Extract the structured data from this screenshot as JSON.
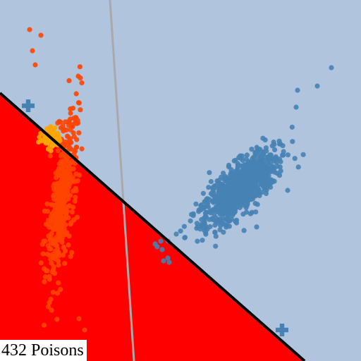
{
  "caption": "432 Poisons",
  "colors": {
    "background_region": "#b0c4de",
    "attack_region": "#ff0000",
    "clean_points": "#4682b4",
    "poison_points": "#ff4500",
    "poison_core": "#ffa500",
    "clean_boundary": "#a9a9a9",
    "poisoned_boundary": "#000000",
    "markers": "#4682b4"
  },
  "chart_data": {
    "type": "scatter",
    "title": "",
    "xlabel": "",
    "ylabel": "",
    "xlim": [
      0,
      512
    ],
    "ylim": [
      0,
      512
    ],
    "grid": false,
    "series": [
      {
        "key": "clean",
        "count": 900,
        "mean": [
          340,
          245
        ],
        "main_axis": [
          0.72,
          0.69
        ],
        "main_sd": 36,
        "minor_sd": 14,
        "color": "#4682b4",
        "extra": [
          [
            470,
            416
          ],
          [
            450,
            390
          ],
          [
            422,
            384
          ],
          [
            408,
            242
          ],
          [
            420,
            360
          ],
          [
            350,
            220
          ],
          [
            220,
            166
          ],
          [
            223,
            162
          ],
          [
            230,
            158
          ],
          [
            238,
            146
          ],
          [
            232,
            142
          ],
          [
            240,
            140
          ],
          [
            228,
            170
          ],
          [
            250,
            180
          ]
        ]
      },
      {
        "key": "poison",
        "count": 432,
        "mean": [
          88,
          235
        ],
        "main_axis": [
          0.12,
          0.99
        ],
        "main_sd": 62,
        "minor_sd": 8,
        "color": "#ff4500",
        "extra": [
          [
            42,
            470
          ],
          [
            58,
            462
          ],
          [
            46,
            440
          ],
          [
            50,
            420
          ],
          [
            120,
            44
          ],
          [
            112,
            60
          ],
          [
            70,
            150
          ],
          [
            64,
            170
          ],
          [
            72,
            200
          ]
        ]
      },
      {
        "key": "poison_core",
        "count": 60,
        "mean": [
          72,
          316
        ],
        "main_axis": [
          0.3,
          0.95
        ],
        "main_sd": 7,
        "minor_sd": 6,
        "color": "#ffa500",
        "extra": []
      }
    ],
    "markers": [
      {
        "shape": "plus",
        "x": 40,
        "y": 362
      },
      {
        "shape": "plus",
        "x": 400,
        "y": 44
      }
    ],
    "boundaries": [
      {
        "key": "clean",
        "color": "#a9a9a9",
        "points": [
          [
            156,
            512
          ],
          [
            190,
            0
          ]
        ]
      },
      {
        "key": "poisoned",
        "color": "#000000",
        "points": [
          [
            0,
            380
          ],
          [
            432,
            0
          ]
        ]
      }
    ]
  }
}
